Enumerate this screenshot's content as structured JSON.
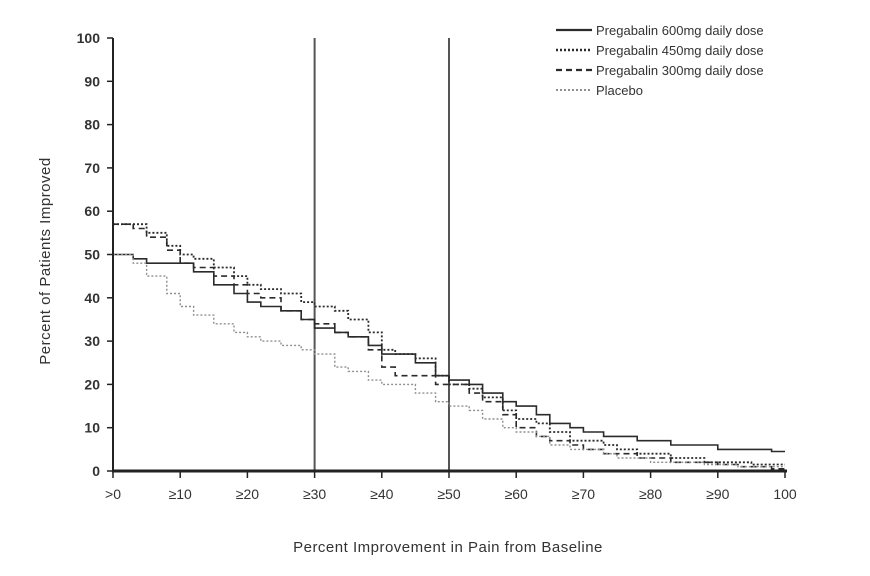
{
  "chart_data": {
    "type": "line",
    "title": "",
    "xlabel": "Percent Improvement in Pain from Baseline",
    "ylabel": "Percent of Patients Improved",
    "xlim": [
      0,
      100
    ],
    "ylim": [
      0,
      100
    ],
    "x_ticks": [
      0,
      10,
      20,
      30,
      40,
      50,
      60,
      70,
      80,
      90,
      100
    ],
    "x_tick_labels": [
      ">0",
      "≥10",
      "≥20",
      "≥30",
      "≥40",
      "≥50",
      "≥60",
      "≥70",
      "≥80",
      "≥90",
      "100"
    ],
    "y_ticks": [
      0,
      10,
      20,
      30,
      40,
      50,
      60,
      70,
      80,
      90,
      100
    ],
    "y_tick_labels": [
      "0",
      "10",
      "20",
      "30",
      "40",
      "50",
      "60",
      "70",
      "80",
      "90",
      "100"
    ],
    "reference_lines_x": [
      30,
      50
    ],
    "legend_position": "top-right",
    "grid": false,
    "series": [
      {
        "name": "Pregabalin 600mg daily dose",
        "style": "solid",
        "color": "#2b2b2b",
        "x": [
          0,
          3,
          5,
          8,
          10,
          12,
          15,
          18,
          20,
          22,
          25,
          28,
          30,
          33,
          35,
          38,
          40,
          42,
          45,
          48,
          50,
          53,
          55,
          58,
          60,
          63,
          65,
          68,
          70,
          73,
          75,
          78,
          80,
          83,
          85,
          88,
          90,
          93,
          95,
          98,
          100
        ],
        "y": [
          50,
          49,
          48,
          48,
          48,
          46,
          43,
          41,
          39,
          38,
          37,
          35,
          33,
          32,
          31,
          29,
          27,
          27,
          25,
          22,
          21,
          20,
          18,
          16,
          15,
          13,
          11,
          10,
          9,
          8,
          8,
          7,
          7,
          6,
          6,
          6,
          5,
          5,
          5,
          4.5,
          4.5
        ]
      },
      {
        "name": "Pregabalin 450mg daily dose",
        "style": "dotted",
        "color": "#2b2b2b",
        "x": [
          0,
          3,
          5,
          8,
          10,
          12,
          15,
          18,
          20,
          22,
          25,
          28,
          30,
          33,
          35,
          38,
          40,
          42,
          45,
          48,
          50,
          53,
          55,
          58,
          60,
          63,
          65,
          68,
          70,
          73,
          75,
          78,
          80,
          83,
          85,
          88,
          90,
          93,
          95,
          98,
          100
        ],
        "y": [
          57,
          57,
          55,
          52,
          50,
          49,
          47,
          45,
          43,
          42,
          41,
          39,
          38,
          37,
          35,
          32,
          28,
          27,
          26,
          22,
          20,
          19,
          17,
          14,
          12,
          11,
          9,
          7,
          7,
          6,
          5,
          4,
          4,
          3,
          3,
          2,
          2,
          2,
          1.5,
          1.5,
          1.5
        ]
      },
      {
        "name": "Pregabalin 300mg daily dose",
        "style": "dashed",
        "color": "#2b2b2b",
        "x": [
          0,
          3,
          5,
          8,
          10,
          12,
          15,
          18,
          20,
          22,
          25,
          28,
          30,
          33,
          35,
          38,
          40,
          42,
          45,
          48,
          50,
          53,
          55,
          58,
          60,
          63,
          65,
          68,
          70,
          73,
          75,
          78,
          80,
          83,
          85,
          88,
          90,
          93,
          95,
          98,
          100
        ],
        "y": [
          57,
          56,
          54,
          51,
          48,
          47,
          45,
          43,
          41,
          40,
          37,
          35,
          34,
          32,
          31,
          28,
          24,
          22,
          22,
          20,
          20,
          18,
          16,
          13,
          10,
          8,
          7,
          6,
          5,
          4,
          4,
          3,
          3,
          2,
          2,
          2,
          1.5,
          1,
          1,
          0.5,
          0.5
        ]
      },
      {
        "name": "Placebo",
        "style": "dotted-light",
        "color": "#8f8f8f",
        "x": [
          0,
          3,
          5,
          8,
          10,
          12,
          15,
          18,
          20,
          22,
          25,
          28,
          30,
          33,
          35,
          38,
          40,
          42,
          45,
          48,
          50,
          53,
          55,
          58,
          60,
          63,
          65,
          68,
          70,
          73,
          75,
          78,
          80,
          83,
          85,
          88,
          90,
          93,
          95,
          98,
          100
        ],
        "y": [
          50,
          48,
          45,
          41,
          38,
          36,
          34,
          32,
          31,
          30,
          29,
          28,
          27,
          24,
          23,
          21,
          20,
          20,
          18,
          16,
          15,
          14,
          12,
          10,
          9,
          8,
          6,
          5,
          5,
          4,
          3,
          3,
          2,
          2,
          2,
          1.5,
          1.5,
          1,
          1,
          1,
          1
        ]
      }
    ]
  }
}
